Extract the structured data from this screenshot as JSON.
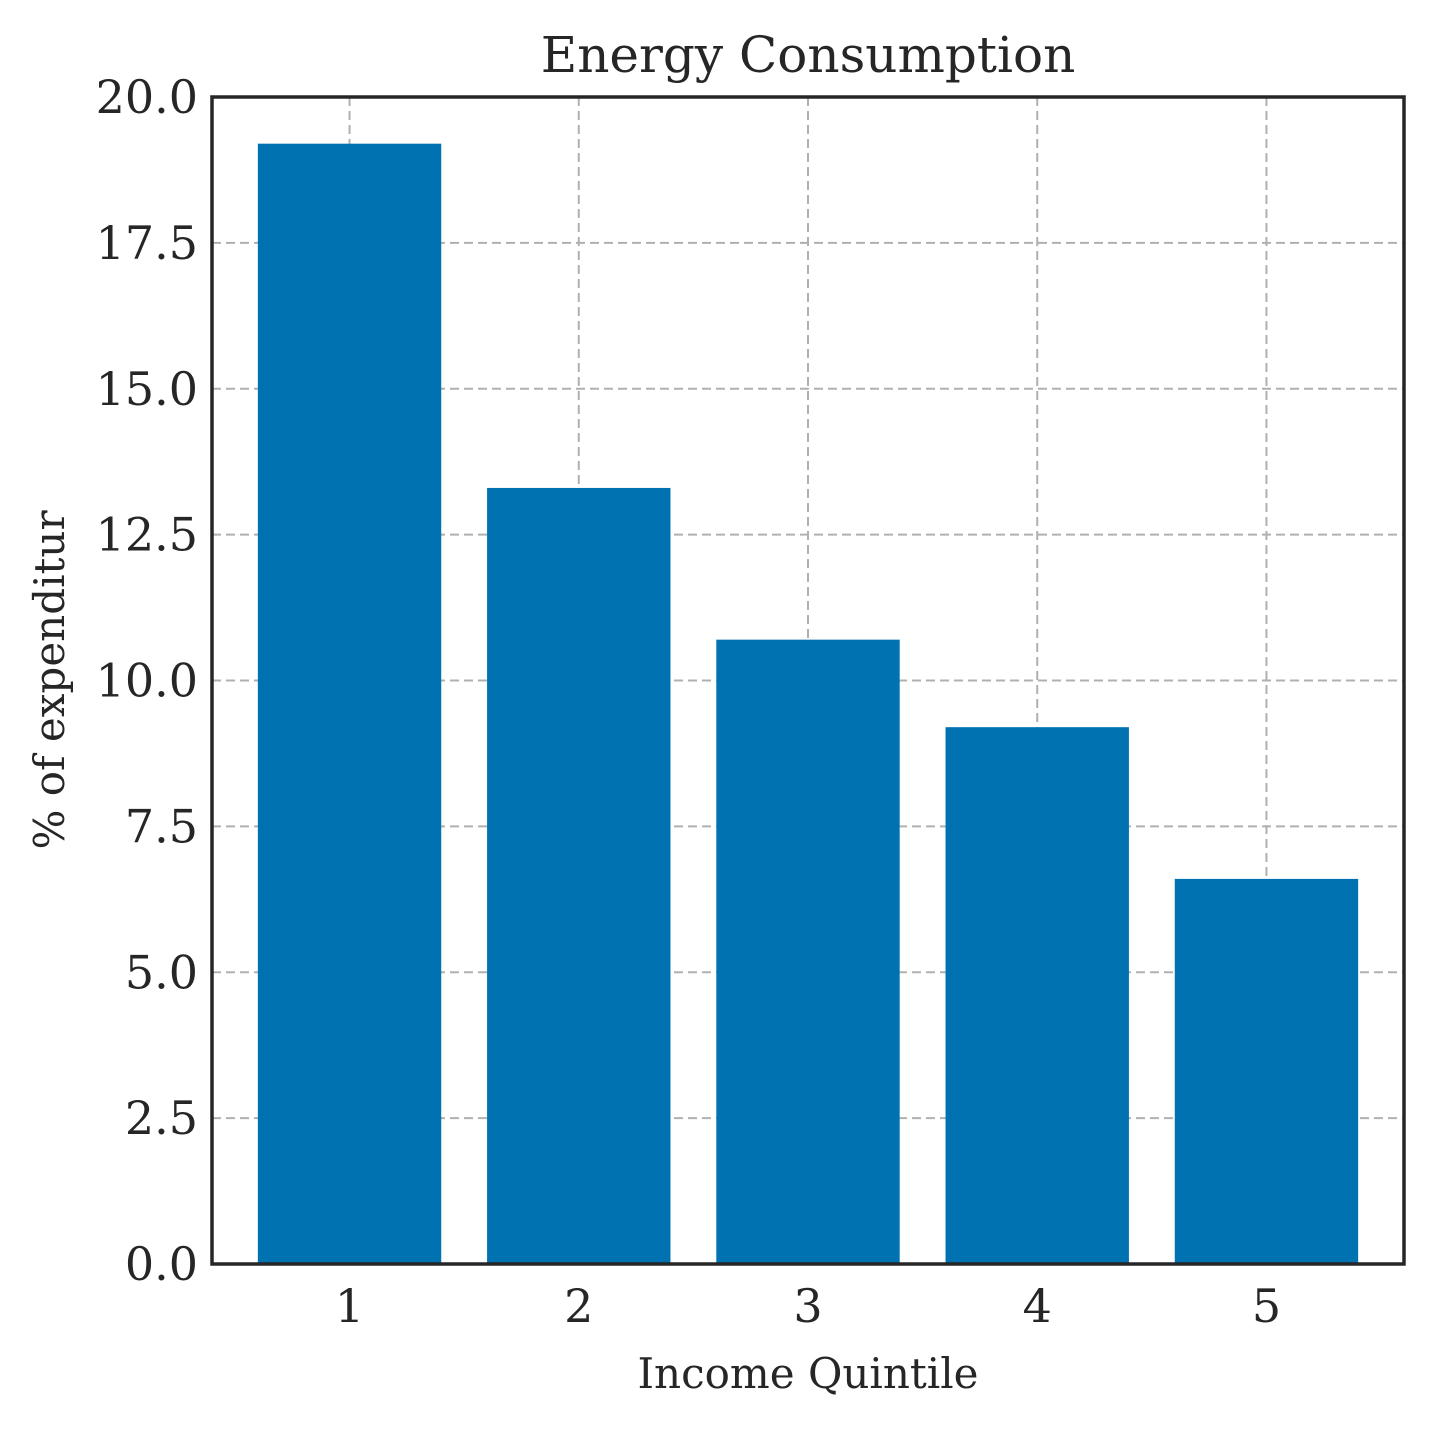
{
  "chart_data": {
    "type": "bar",
    "title": "Energy Consumption",
    "xlabel": "Income Quintile",
    "ylabel": "% of expenditur",
    "categories": [
      "1",
      "2",
      "3",
      "4",
      "5"
    ],
    "values": [
      19.2,
      13.3,
      10.7,
      9.2,
      6.6
    ],
    "ylim": [
      0,
      20.0
    ],
    "yticks": [
      "0.0",
      "2.5",
      "5.0",
      "7.5",
      "10.0",
      "12.5",
      "15.0",
      "17.5",
      "20.0"
    ],
    "ytick_values": [
      0,
      2.5,
      5,
      7.5,
      10,
      12.5,
      15,
      17.5,
      20
    ],
    "grid": true,
    "bar_color": "#0072b2"
  }
}
